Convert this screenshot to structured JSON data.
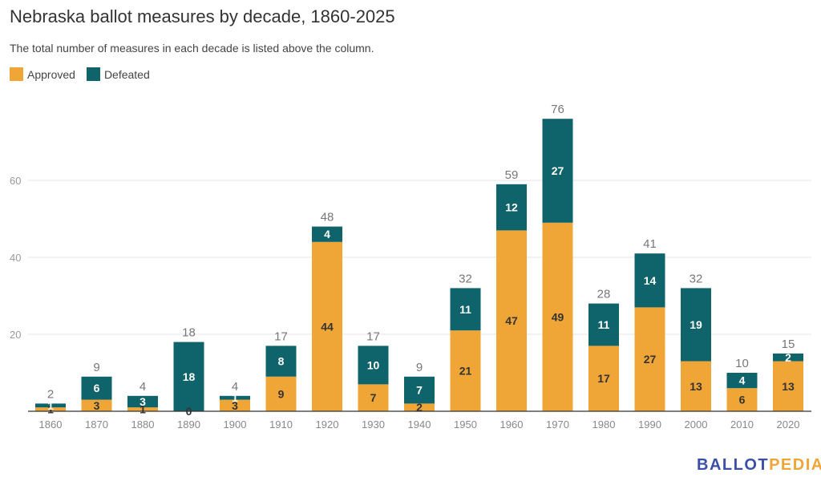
{
  "chart_data": {
    "type": "bar",
    "stacked": true,
    "title": "Nebraska ballot measures by decade, 1860-2025",
    "subtitle": "The total number of measures in each decade is listed above the column.",
    "xlabel": "",
    "ylabel": "",
    "ylim": [
      0,
      80
    ],
    "yticks": [
      20,
      40,
      60
    ],
    "grid": true,
    "legend_position": "top-left",
    "categories": [
      "1860",
      "1870",
      "1880",
      "1890",
      "1900",
      "1910",
      "1920",
      "1930",
      "1940",
      "1950",
      "1960",
      "1970",
      "1980",
      "1990",
      "2000",
      "2010",
      "2020"
    ],
    "series": [
      {
        "name": "Approved",
        "color": "#f0a537",
        "values": [
          1,
          3,
          1,
          0,
          3,
          9,
          44,
          7,
          2,
          21,
          47,
          49,
          17,
          27,
          13,
          6,
          13
        ]
      },
      {
        "name": "Defeated",
        "color": "#0f636b",
        "values": [
          1,
          6,
          3,
          18,
          1,
          8,
          4,
          10,
          7,
          11,
          12,
          27,
          11,
          14,
          19,
          4,
          2
        ]
      }
    ],
    "totals": [
      2,
      9,
      4,
      18,
      4,
      17,
      48,
      17,
      9,
      32,
      59,
      76,
      28,
      41,
      32,
      10,
      15
    ]
  },
  "legend": [
    {
      "label": "Approved",
      "color": "#f0a537"
    },
    {
      "label": "Defeated",
      "color": "#0f636b"
    }
  ],
  "brand": {
    "part1": "BALLOT",
    "part2": "PEDIA"
  }
}
